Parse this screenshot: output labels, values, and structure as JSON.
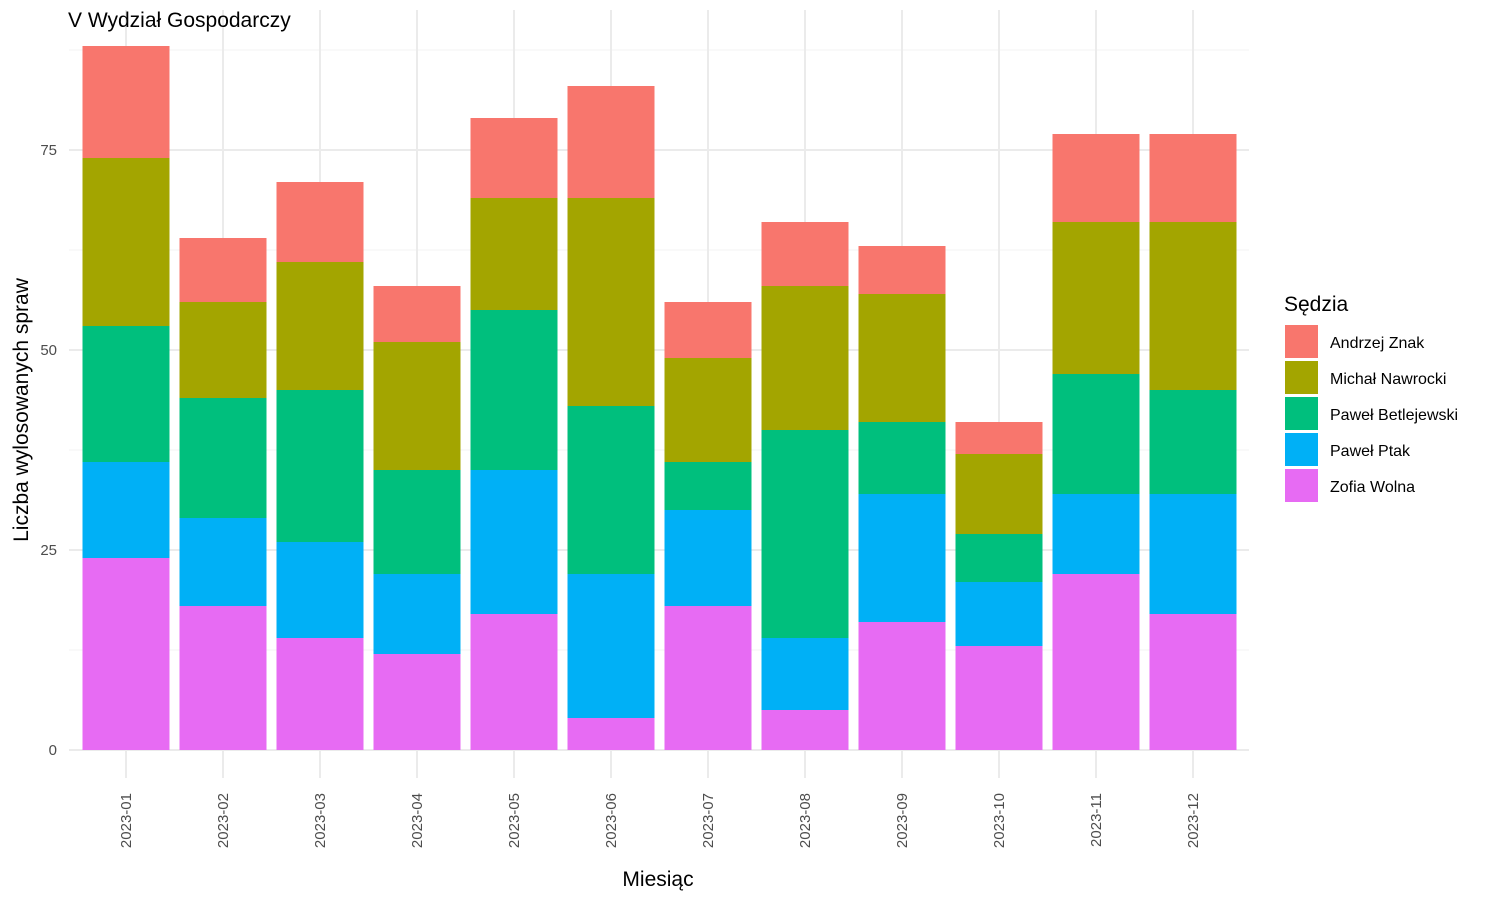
{
  "chart_data": {
    "type": "bar",
    "stacked": true,
    "title": "V Wydział Gospodarczy",
    "xlabel": "Miesiąc",
    "ylabel": "Liczba wylosowanych spraw",
    "ylim": [
      0,
      89
    ],
    "yticks": [
      0,
      25,
      50,
      75
    ],
    "grid": true,
    "legend_position": "right",
    "legend_title": "Sędzia",
    "categories": [
      "2023-01",
      "2023-02",
      "2023-03",
      "2023-04",
      "2023-05",
      "2023-06",
      "2023-07",
      "2023-08",
      "2023-09",
      "2023-10",
      "2023-11",
      "2023-12"
    ],
    "series": [
      {
        "name": "Zofia Wolna",
        "color": "#E76BF3",
        "values": [
          24,
          18,
          14,
          12,
          17,
          4,
          18,
          5,
          16,
          13,
          22,
          17
        ]
      },
      {
        "name": "Paweł Ptak",
        "color": "#00B0F6",
        "values": [
          12,
          11,
          12,
          10,
          18,
          18,
          12,
          9,
          16,
          8,
          10,
          15
        ]
      },
      {
        "name": "Paweł Betlejewski",
        "color": "#00BF7D",
        "values": [
          17,
          15,
          19,
          13,
          20,
          21,
          6,
          26,
          9,
          6,
          15,
          13
        ]
      },
      {
        "name": "Michał Nawrocki",
        "color": "#A3A500",
        "values": [
          21,
          12,
          16,
          16,
          14,
          26,
          13,
          18,
          16,
          10,
          19,
          21
        ]
      },
      {
        "name": "Andrzej Znak",
        "color": "#F8766D",
        "values": [
          14,
          8,
          10,
          7,
          10,
          14,
          7,
          8,
          6,
          4,
          11,
          11
        ]
      }
    ],
    "legend_order": [
      "Andrzej Znak",
      "Michał Nawrocki",
      "Paweł Betlejewski",
      "Paweł Ptak",
      "Zofia Wolna"
    ]
  }
}
